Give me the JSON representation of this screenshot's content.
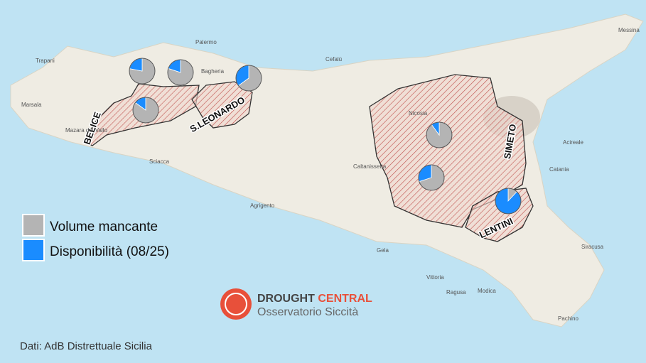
{
  "legend": [
    {
      "name": "Volume mancante",
      "color": "#b4b4b4"
    },
    {
      "name": "Disponibilità (08/25)",
      "color": "#1a8cff"
    }
  ],
  "basins": [
    "BELICE",
    "S.LEONARDO",
    "SIMETO",
    "LENTINI"
  ],
  "pies": [
    {
      "values": [
        78,
        22
      ]
    },
    {
      "values": [
        80,
        20
      ]
    },
    {
      "values": [
        65,
        35
      ]
    },
    {
      "values": [
        85,
        15
      ]
    },
    {
      "values": [
        90,
        10
      ]
    },
    {
      "values": [
        70,
        30
      ]
    },
    {
      "values": [
        12,
        88
      ]
    }
  ],
  "places": [
    "Palermo",
    "Bagheria",
    "Trapani",
    "Marsala",
    "Mazara del Vallo",
    "Sciacca",
    "Agrigento",
    "Caltanissetta",
    "Cefalù",
    "Nicosia",
    "Catania",
    "Acireale",
    "Messina",
    "Siracusa",
    "Gela",
    "Vittoria",
    "Ragusa",
    "Modica",
    "Pachino"
  ],
  "logo": {
    "title_a": "DROUGHT",
    "title_b": "CENTRAL",
    "subtitle": "Osservatorio Siccità"
  },
  "source": "Dati: AdB Distrettuale Sicilia"
}
